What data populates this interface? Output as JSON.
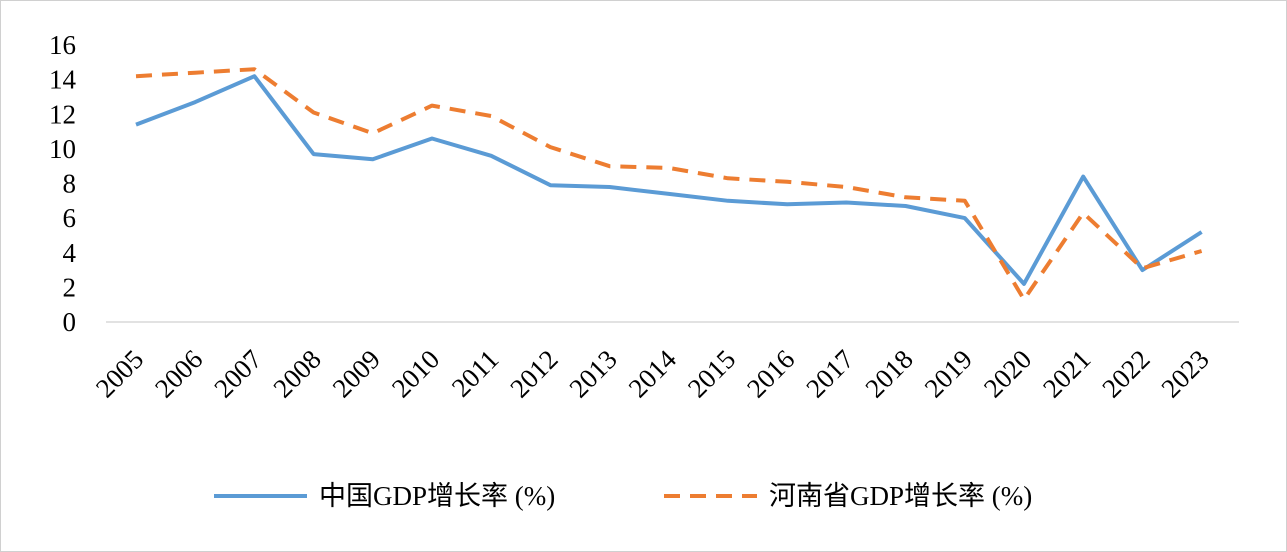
{
  "chart_data": {
    "type": "line",
    "title": "",
    "xlabel": "",
    "ylabel": "",
    "ylim": [
      0,
      16
    ],
    "yticks": [
      0,
      2,
      4,
      6,
      8,
      10,
      12,
      14,
      16
    ],
    "grid": false,
    "legend_position": "bottom",
    "categories": [
      "2005",
      "2006",
      "2007",
      "2008",
      "2009",
      "2010",
      "2011",
      "2012",
      "2013",
      "2014",
      "2015",
      "2016",
      "2017",
      "2018",
      "2019",
      "2020",
      "2021",
      "2022",
      "2023"
    ],
    "series": [
      {
        "name": "中国GDP增长率 (%)",
        "color": "#5B9BD5",
        "style": "solid",
        "values": [
          11.4,
          12.7,
          14.2,
          9.7,
          9.4,
          10.6,
          9.6,
          7.9,
          7.8,
          7.4,
          7.0,
          6.8,
          6.9,
          6.7,
          6.0,
          2.2,
          8.4,
          3.0,
          5.2
        ]
      },
      {
        "name": "河南省GDP增长率 (%)",
        "color": "#ED7D31",
        "style": "dashed",
        "values": [
          14.2,
          14.4,
          14.6,
          12.1,
          10.9,
          12.5,
          11.9,
          10.1,
          9.0,
          8.9,
          8.3,
          8.1,
          7.8,
          7.2,
          7.0,
          1.3,
          6.3,
          3.1,
          4.1
        ]
      }
    ]
  }
}
